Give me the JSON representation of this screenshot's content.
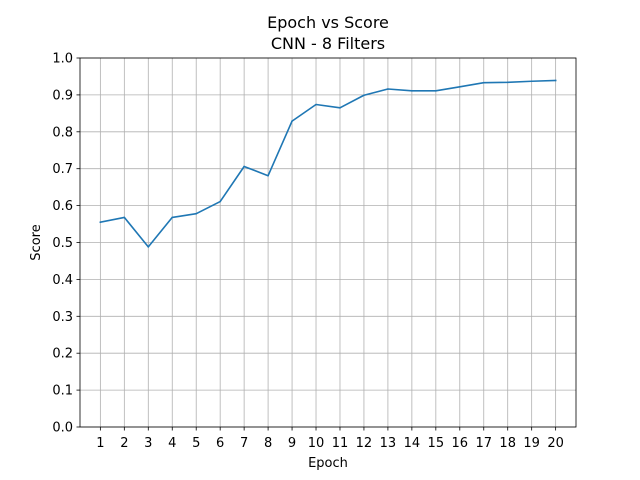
{
  "chart_data": {
    "type": "line",
    "title": "Epoch vs Score",
    "subtitle": "CNN - 8 Filters",
    "xlabel": "Epoch",
    "ylabel": "Score",
    "x": [
      1,
      2,
      3,
      4,
      5,
      6,
      7,
      8,
      9,
      10,
      11,
      12,
      13,
      14,
      15,
      16,
      17,
      18,
      19,
      20
    ],
    "x_tick_labels": [
      "1",
      "2",
      "3",
      "4",
      "5",
      "6",
      "7",
      "8",
      "9",
      "10",
      "11",
      "12",
      "13",
      "14",
      "15",
      "16",
      "17",
      "18",
      "19",
      "20"
    ],
    "y_tick_labels": [
      "0.0",
      "0.1",
      "0.2",
      "0.3",
      "0.4",
      "0.5",
      "0.6",
      "0.7",
      "0.8",
      "0.9",
      "1.0"
    ],
    "y_ticks": [
      0.0,
      0.1,
      0.2,
      0.3,
      0.4,
      0.5,
      0.6,
      0.7,
      0.8,
      0.9,
      1.0
    ],
    "xlim": [
      0.15,
      20.85
    ],
    "ylim": [
      0.0,
      1.0
    ],
    "grid": true,
    "legend": "none",
    "series": [
      {
        "values": [
          0.555,
          0.568,
          0.488,
          0.568,
          0.578,
          0.611,
          0.706,
          0.681,
          0.829,
          0.874,
          0.865,
          0.899,
          0.916,
          0.911,
          0.911,
          0.922,
          0.933,
          0.934,
          0.937,
          0.939
        ],
        "color": "#1f77b4"
      }
    ]
  }
}
